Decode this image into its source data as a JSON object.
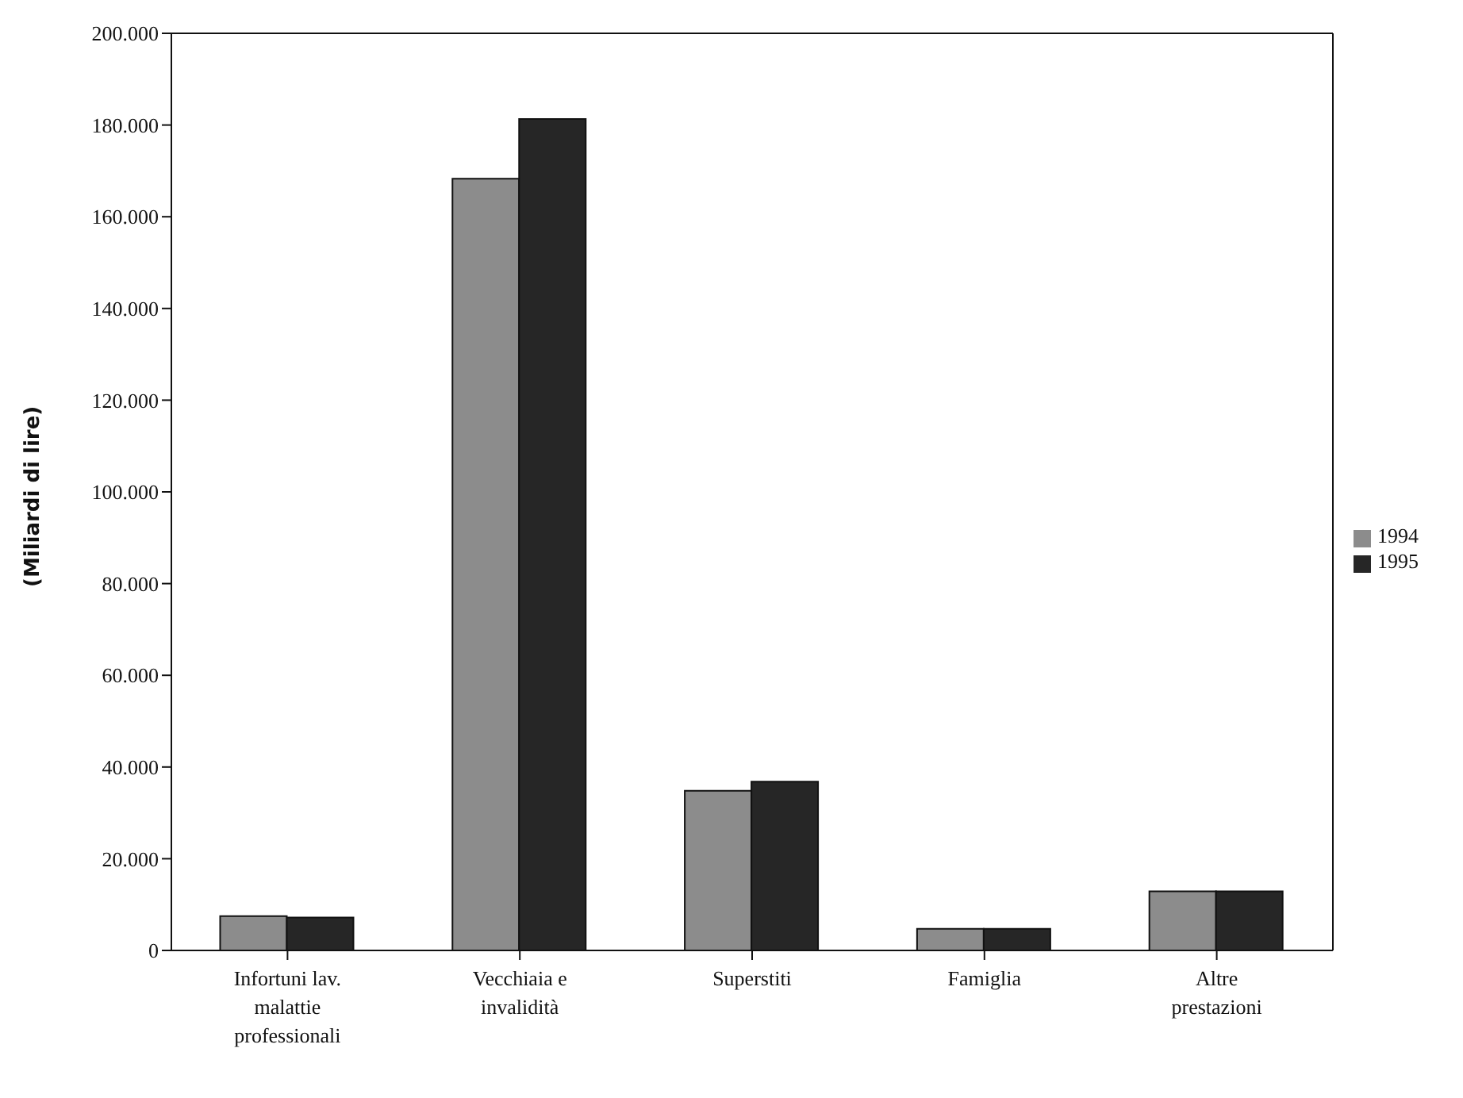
{
  "chart_data": {
    "type": "bar",
    "ylabel": "(Miliardi di lire)",
    "categories": [
      "Infortuni lav. malattie professionali",
      "Vecchiaia e invalidità",
      "Superstiti",
      "Famiglia",
      "Altre prestazioni"
    ],
    "series": [
      {
        "name": "1994",
        "color": "#8c8c8c",
        "values": [
          7500,
          168300,
          34800,
          4700,
          12900
        ]
      },
      {
        "name": "1995",
        "color": "#262626",
        "values": [
          7200,
          181300,
          36800,
          4700,
          12900
        ]
      }
    ],
    "ylim": [
      0,
      200000
    ],
    "yticks": [
      {
        "value": 0,
        "label": "0"
      },
      {
        "value": 20000,
        "label": "20.000"
      },
      {
        "value": 40000,
        "label": "40.000"
      },
      {
        "value": 60000,
        "label": "60.000"
      },
      {
        "value": 80000,
        "label": "80.000"
      },
      {
        "value": 100000,
        "label": "100.000"
      },
      {
        "value": 120000,
        "label": "120.000"
      },
      {
        "value": 140000,
        "label": "140.000"
      },
      {
        "value": 160000,
        "label": "160.000"
      },
      {
        "value": 180000,
        "label": "180.000"
      },
      {
        "value": 200000,
        "label": "200.000"
      }
    ],
    "grid": false,
    "legend": "right"
  }
}
